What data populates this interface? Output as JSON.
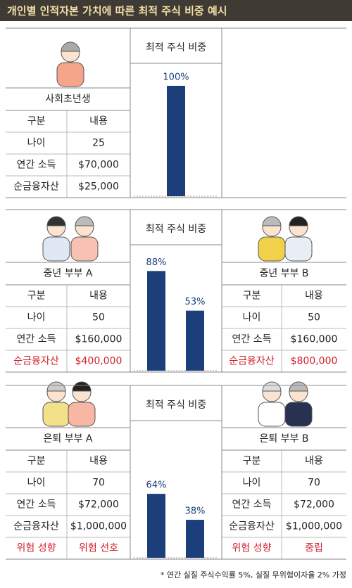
{
  "header": {
    "title": "개인별 인적자본 가치에 따른 최적 주식 비중 예시"
  },
  "highlight_color": "#d0202a",
  "sections": [
    {
      "left": {
        "name": "사회초년생",
        "header": [
          "구분",
          "내용"
        ],
        "rows": [
          [
            "나이",
            "25"
          ],
          [
            "연간 소득",
            "$70,000"
          ],
          [
            "순금융자산",
            "$25,000"
          ]
        ]
      }
    },
    {
      "left": {
        "name": "중년 부부 A",
        "header": [
          "구분",
          "내용"
        ],
        "rows": [
          [
            "나이",
            "50"
          ],
          [
            "연간 소득",
            "$160,000"
          ],
          [
            "순금융자산",
            "$400,000"
          ]
        ],
        "highlight_row": 2
      },
      "right": {
        "name": "중년 부부 B",
        "header": [
          "구분",
          "내용"
        ],
        "rows": [
          [
            "나이",
            "50"
          ],
          [
            "연간 소득",
            "$160,000"
          ],
          [
            "순금융자산",
            "$800,000"
          ]
        ],
        "highlight_row": 2
      }
    },
    {
      "left": {
        "name": "은퇴 부부 A",
        "header": [
          "구분",
          "내용"
        ],
        "rows": [
          [
            "나이",
            "70"
          ],
          [
            "연간 소득",
            "$72,000"
          ],
          [
            "순금융자산",
            "$1,000,000"
          ],
          [
            "위험 성향",
            "위험 선호"
          ]
        ],
        "highlight_row": 3
      },
      "right": {
        "name": "은퇴 부부 B",
        "header": [
          "구분",
          "내용"
        ],
        "rows": [
          [
            "나이",
            "70"
          ],
          [
            "연간 소득",
            "$72,000"
          ],
          [
            "순금융자산",
            "$1,000,000"
          ],
          [
            "위험 성향",
            "중립"
          ]
        ],
        "highlight_row": 3
      }
    }
  ],
  "chart_data": [
    {
      "type": "bar",
      "title": "최적 주식 비중",
      "categories": [
        null
      ],
      "values": [
        100
      ],
      "value_labels": [
        "100%"
      ],
      "ylim": [
        0,
        100
      ],
      "color": "#1c3f7c"
    },
    {
      "type": "bar",
      "title": "최적 주식 비중",
      "categories": [
        null,
        null
      ],
      "values": [
        88,
        53
      ],
      "value_labels": [
        "88%",
        "53%"
      ],
      "ylim": [
        0,
        100
      ],
      "color": "#1c3f7c"
    },
    {
      "type": "bar",
      "title": "최적 주식 비중",
      "categories": [
        null,
        null
      ],
      "values": [
        64,
        38
      ],
      "value_labels": [
        "64%",
        "38%"
      ],
      "ylim": [
        0,
        100
      ],
      "color": "#1c3f7c"
    }
  ],
  "footnote": "* 연간 실질 주식수익률 5%, 실질 무위험이자율 2% 가정"
}
